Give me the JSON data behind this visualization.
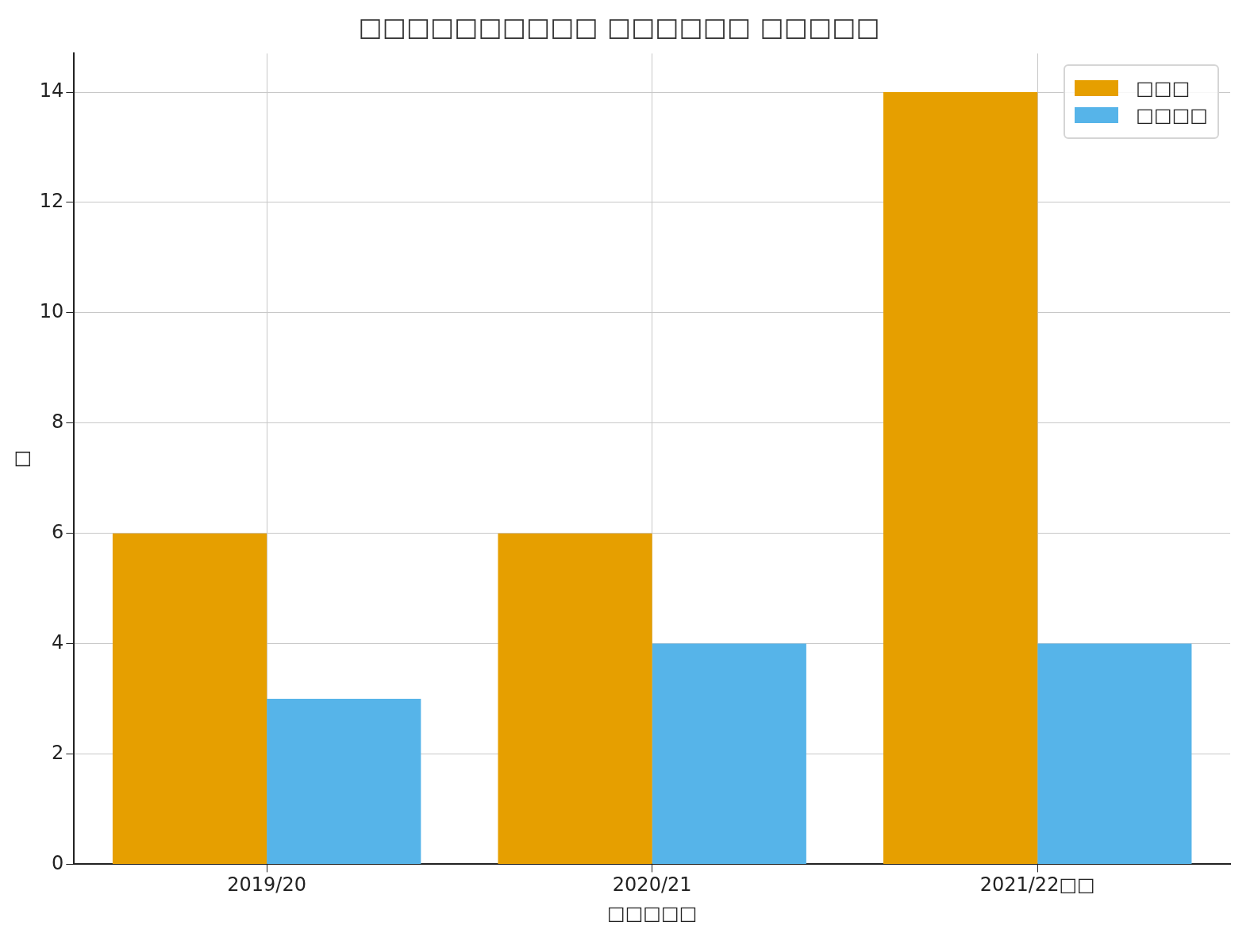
{
  "chart_data": {
    "type": "bar",
    "title": "□□□□□□□□□□ □□□□□□ □□□□□",
    "xlabel": "□□□□□",
    "ylabel": "□",
    "categories": [
      "2019/20",
      "2020/21",
      "2021/22□□"
    ],
    "series": [
      {
        "name": "□□□",
        "color": "#e69f00",
        "values": [
          6,
          6,
          14
        ]
      },
      {
        "name": "□□□□",
        "color": "#56b4e9",
        "values": [
          3,
          4,
          4
        ]
      }
    ],
    "ylim": [
      0,
      14.7
    ],
    "yticks": [
      0,
      2,
      4,
      6,
      8,
      10,
      12,
      14
    ],
    "grid": true,
    "legend": "top right"
  }
}
